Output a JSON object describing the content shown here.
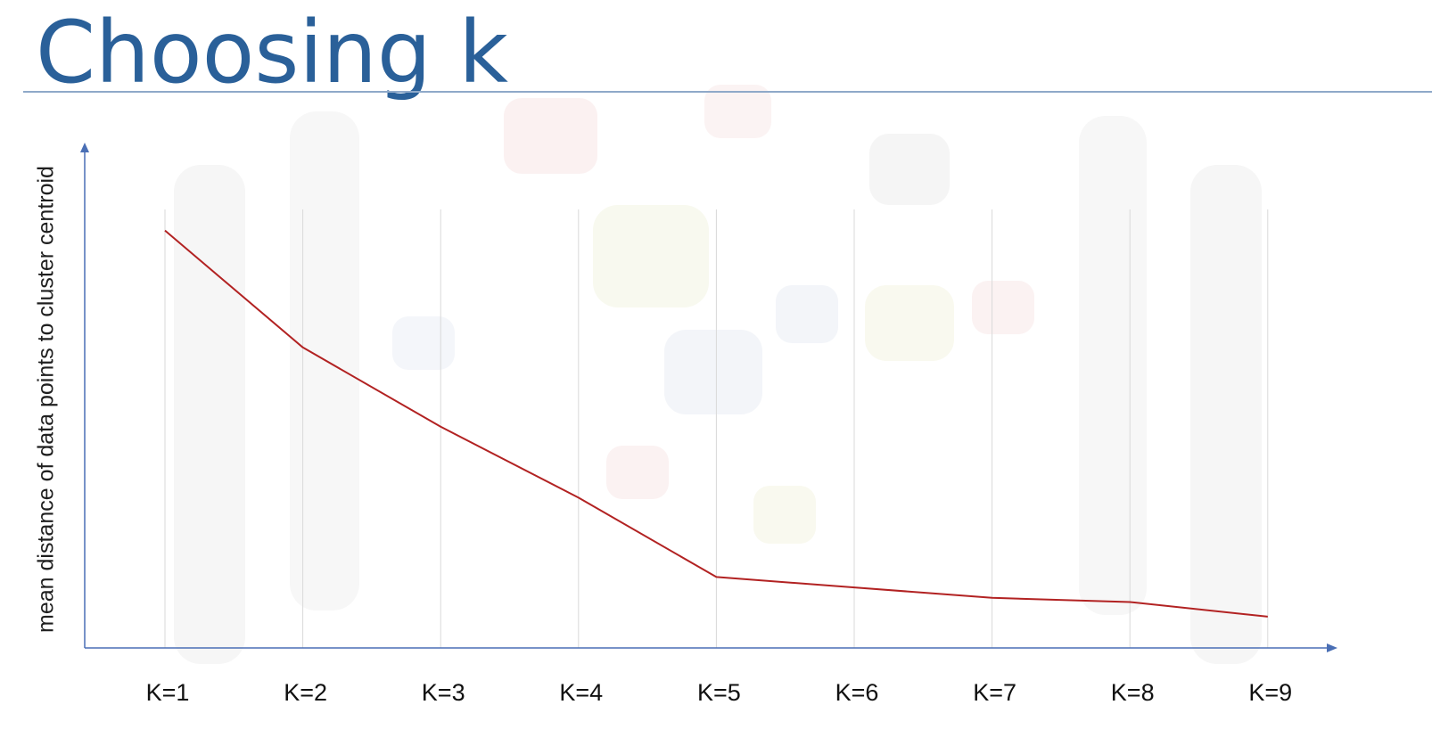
{
  "title": "Choosing k",
  "colors": {
    "title": "#2a6099",
    "axis": "#4a6fb5",
    "line": "#b22222",
    "grid": "#d9d9d9"
  },
  "chart_data": {
    "type": "line",
    "title": "",
    "xlabel": "",
    "ylabel": "mean distance of data points to cluster centroid",
    "categories": [
      "K=1",
      "K=2",
      "K=3",
      "K=4",
      "K=5",
      "K=6",
      "K=7",
      "K=8",
      "K=9"
    ],
    "series": [
      {
        "values": [
          100,
          72,
          53,
          36,
          17,
          14.5,
          12,
          11,
          7.5
        ]
      }
    ],
    "ylim": [
      0,
      120
    ],
    "grid": "vertical",
    "y_tick_labels": "none"
  }
}
